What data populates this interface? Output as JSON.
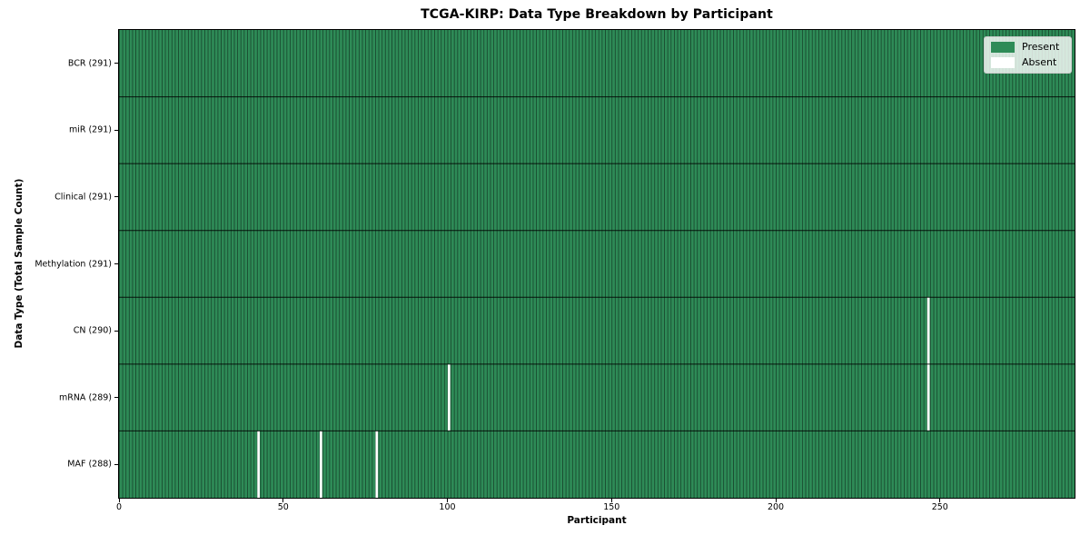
{
  "chart_data": {
    "type": "heatmap",
    "title": "TCGA-KIRP: Data Type Breakdown by Participant",
    "xlabel": "Participant",
    "ylabel": "Data Type (Total Sample Count)",
    "x_min": 0,
    "x_max": 291,
    "n_participants": 291,
    "x_ticks": [
      0,
      50,
      100,
      150,
      200,
      250
    ],
    "legend_position": "upper-right",
    "legend": [
      {
        "label": "Present",
        "color": "#2e8b57"
      },
      {
        "label": "Absent",
        "color": "#ffffff"
      }
    ],
    "rows": [
      {
        "label": "BCR (291)",
        "data_type": "BCR",
        "total_samples": 291,
        "absent_participants": []
      },
      {
        "label": "miR (291)",
        "data_type": "miR",
        "total_samples": 291,
        "absent_participants": []
      },
      {
        "label": "Clinical (291)",
        "data_type": "Clinical",
        "total_samples": 291,
        "absent_participants": []
      },
      {
        "label": "Methylation (291)",
        "data_type": "Methylation",
        "total_samples": 291,
        "absent_participants": []
      },
      {
        "label": "CN (290)",
        "data_type": "CN",
        "total_samples": 290,
        "absent_participants": [
          246
        ]
      },
      {
        "label": "mRNA (289)",
        "data_type": "mRNA",
        "total_samples": 289,
        "absent_participants": [
          100,
          246
        ]
      },
      {
        "label": "MAF (288)",
        "data_type": "MAF",
        "total_samples": 288,
        "absent_participants": [
          42,
          61,
          78
        ]
      }
    ],
    "colors": {
      "present": "#2e8b57",
      "absent": "#ffffff",
      "cell_border": "rgba(0,0,0,0.45)",
      "row_divider": "rgba(0,0,0,0.85)",
      "spine": "#000000"
    }
  }
}
